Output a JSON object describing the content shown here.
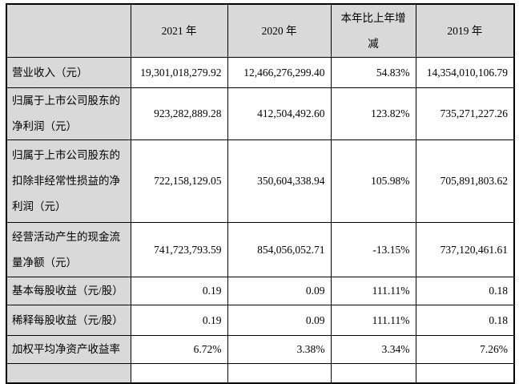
{
  "table": {
    "columns": [
      "",
      "2021 年",
      "2020 年",
      "本年比上年增减",
      "2019 年"
    ],
    "rows": [
      {
        "label": "营业收入（元）",
        "values": [
          "19,301,018,279.92",
          "12,466,276,299.40",
          "54.83%",
          "14,354,010,106.79"
        ]
      },
      {
        "label": "归属于上市公司股东的净利润（元）",
        "values": [
          "923,282,889.28",
          "412,504,492.60",
          "123.82%",
          "735,271,227.26"
        ]
      },
      {
        "label": "归属于上市公司股东的扣除非经常性损益的净利润（元）",
        "values": [
          "722,158,129.05",
          "350,604,338.94",
          "105.98%",
          "705,891,803.62"
        ]
      },
      {
        "label": "经营活动产生的现金流量净额（元）",
        "values": [
          "741,723,793.59",
          "854,056,052.71",
          "-13.15%",
          "737,120,461.61"
        ]
      },
      {
        "label": "基本每股收益（元/股）",
        "values": [
          "0.19",
          "0.09",
          "111.11%",
          "0.18"
        ]
      },
      {
        "label": "稀释每股收益（元/股）",
        "values": [
          "0.19",
          "0.09",
          "111.11%",
          "0.18"
        ]
      },
      {
        "label": "加权平均净资产收益率",
        "values": [
          "6.72%",
          "3.38%",
          "3.34%",
          "7.26%"
        ]
      }
    ],
    "colors": {
      "header_bg": "#d9d9d9",
      "border": "#000000",
      "text": "#000000"
    }
  }
}
